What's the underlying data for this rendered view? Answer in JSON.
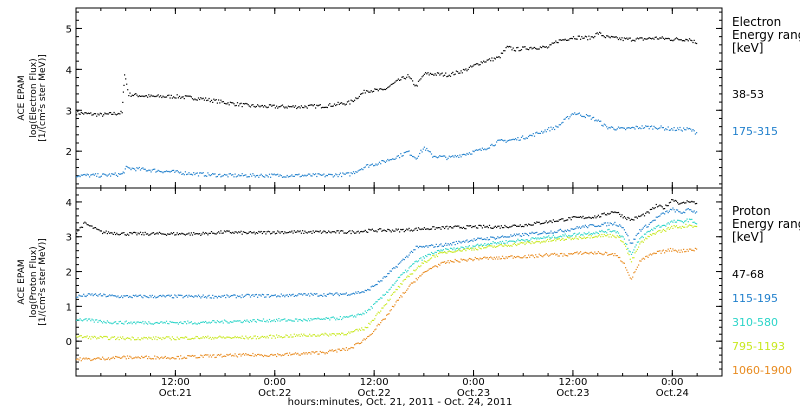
{
  "figure": {
    "x_axis_caption": "hours:minutes, Oct. 21, 2011 - Oct. 24, 2011",
    "time_ticks": [
      {
        "t": 12,
        "time": "12:00",
        "date": "Oct.21"
      },
      {
        "t": 24,
        "time": "0:00",
        "date": "Oct.22"
      },
      {
        "t": 36,
        "time": "12:00",
        "date": "Oct.22"
      },
      {
        "t": 48,
        "time": "0:00",
        "date": "Oct.23"
      },
      {
        "t": 60,
        "time": "12:00",
        "date": "Oct.23"
      },
      {
        "t": 72,
        "time": "0:00",
        "date": "Oct.24"
      }
    ]
  },
  "chart_data": [
    {
      "type": "scatter",
      "ylabel": [
        "ACE EPAM",
        "log(Electron Flux)",
        "[1/(cm²s ster MeV)]"
      ],
      "ylim": [
        1.1,
        5.5
      ],
      "xlim": [
        0,
        78
      ],
      "yticks": [
        2,
        3,
        4,
        5
      ],
      "legend_title": [
        "Electron",
        "Energy range",
        "[keV]"
      ],
      "series": [
        {
          "name": "38-53",
          "color": "#000000",
          "points": [
            [
              0,
              2.95
            ],
            [
              3,
              2.9
            ],
            [
              5.5,
              2.95
            ],
            [
              5.8,
              3.9
            ],
            [
              6.3,
              3.4
            ],
            [
              9,
              3.35
            ],
            [
              12,
              3.35
            ],
            [
              15,
              3.3
            ],
            [
              18,
              3.2
            ],
            [
              21,
              3.12
            ],
            [
              24,
              3.1
            ],
            [
              27,
              3.1
            ],
            [
              30,
              3.12
            ],
            [
              33,
              3.2
            ],
            [
              35,
              3.5
            ],
            [
              37,
              3.5
            ],
            [
              39,
              3.75
            ],
            [
              40,
              3.85
            ],
            [
              41,
              3.6
            ],
            [
              42,
              3.9
            ],
            [
              43,
              3.9
            ],
            [
              45,
              3.88
            ],
            [
              47,
              4.0
            ],
            [
              49,
              4.2
            ],
            [
              51,
              4.3
            ],
            [
              52,
              4.55
            ],
            [
              53,
              4.5
            ],
            [
              55,
              4.55
            ],
            [
              57,
              4.55
            ],
            [
              58,
              4.7
            ],
            [
              60,
              4.8
            ],
            [
              62,
              4.78
            ],
            [
              63,
              4.9
            ],
            [
              64,
              4.8
            ],
            [
              66,
              4.75
            ],
            [
              68,
              4.75
            ],
            [
              70,
              4.78
            ],
            [
              72,
              4.75
            ],
            [
              74,
              4.75
            ],
            [
              75,
              4.65
            ]
          ]
        },
        {
          "name": "175-315",
          "color": "#1f7fcc",
          "points": [
            [
              0,
              1.42
            ],
            [
              3,
              1.42
            ],
            [
              5.5,
              1.45
            ],
            [
              6,
              1.6
            ],
            [
              9,
              1.55
            ],
            [
              12,
              1.5
            ],
            [
              15,
              1.45
            ],
            [
              18,
              1.42
            ],
            [
              21,
              1.42
            ],
            [
              24,
              1.42
            ],
            [
              27,
              1.42
            ],
            [
              30,
              1.42
            ],
            [
              33,
              1.45
            ],
            [
              35,
              1.65
            ],
            [
              37,
              1.75
            ],
            [
              39,
              1.9
            ],
            [
              40,
              2.0
            ],
            [
              41,
              1.85
            ],
            [
              42,
              2.1
            ],
            [
              43,
              1.9
            ],
            [
              45,
              1.85
            ],
            [
              47,
              1.95
            ],
            [
              49,
              2.05
            ],
            [
              51,
              2.25
            ],
            [
              53,
              2.3
            ],
            [
              55,
              2.4
            ],
            [
              57,
              2.55
            ],
            [
              58,
              2.6
            ],
            [
              60,
              2.95
            ],
            [
              62,
              2.85
            ],
            [
              63,
              2.75
            ],
            [
              64,
              2.6
            ],
            [
              66,
              2.55
            ],
            [
              68,
              2.6
            ],
            [
              70,
              2.6
            ],
            [
              72,
              2.55
            ],
            [
              74,
              2.55
            ],
            [
              75,
              2.45
            ]
          ]
        }
      ]
    },
    {
      "type": "scatter",
      "ylabel": [
        "ACE EPAM",
        "log(Proton Flux)",
        "[1/(cm²s ster MeV)]"
      ],
      "ylim": [
        -1.0,
        4.4
      ],
      "xlim": [
        0,
        78
      ],
      "yticks": [
        0,
        1,
        2,
        3,
        4
      ],
      "legend_title": [
        "Proton",
        "Energy range",
        "[keV]"
      ],
      "series": [
        {
          "name": "47-68",
          "color": "#000000",
          "points": [
            [
              0,
              3.15
            ],
            [
              1,
              3.4
            ],
            [
              3,
              3.15
            ],
            [
              6,
              3.1
            ],
            [
              9,
              3.1
            ],
            [
              12,
              3.1
            ],
            [
              15,
              3.1
            ],
            [
              18,
              3.15
            ],
            [
              21,
              3.12
            ],
            [
              24,
              3.15
            ],
            [
              27,
              3.15
            ],
            [
              30,
              3.15
            ],
            [
              33,
              3.15
            ],
            [
              36,
              3.2
            ],
            [
              39,
              3.2
            ],
            [
              42,
              3.25
            ],
            [
              45,
              3.28
            ],
            [
              48,
              3.3
            ],
            [
              51,
              3.3
            ],
            [
              54,
              3.35
            ],
            [
              57,
              3.45
            ],
            [
              60,
              3.55
            ],
            [
              63,
              3.6
            ],
            [
              65,
              3.75
            ],
            [
              66,
              3.6
            ],
            [
              67,
              3.5
            ],
            [
              69,
              3.7
            ],
            [
              70,
              3.9
            ],
            [
              71,
              3.85
            ],
            [
              72,
              4.1
            ],
            [
              73,
              3.95
            ],
            [
              74,
              4.05
            ],
            [
              75,
              3.95
            ]
          ]
        },
        {
          "name": "115-195",
          "color": "#1f7fcc",
          "points": [
            [
              0,
              1.3
            ],
            [
              2,
              1.35
            ],
            [
              5,
              1.3
            ],
            [
              9,
              1.3
            ],
            [
              12,
              1.3
            ],
            [
              15,
              1.3
            ],
            [
              18,
              1.3
            ],
            [
              21,
              1.32
            ],
            [
              24,
              1.32
            ],
            [
              27,
              1.35
            ],
            [
              30,
              1.35
            ],
            [
              33,
              1.38
            ],
            [
              35,
              1.45
            ],
            [
              37,
              1.8
            ],
            [
              39,
              2.25
            ],
            [
              41,
              2.7
            ],
            [
              43,
              2.75
            ],
            [
              45,
              2.8
            ],
            [
              47,
              2.9
            ],
            [
              49,
              2.95
            ],
            [
              51,
              3.0
            ],
            [
              53,
              3.05
            ],
            [
              55,
              3.1
            ],
            [
              57,
              3.15
            ],
            [
              59,
              3.2
            ],
            [
              61,
              3.3
            ],
            [
              63,
              3.35
            ],
            [
              65,
              3.4
            ],
            [
              66,
              3.3
            ],
            [
              67,
              2.8
            ],
            [
              68,
              3.2
            ],
            [
              69,
              3.35
            ],
            [
              70,
              3.55
            ],
            [
              71,
              3.7
            ],
            [
              72,
              3.8
            ],
            [
              73,
              3.7
            ],
            [
              74,
              3.8
            ],
            [
              75,
              3.7
            ]
          ]
        },
        {
          "name": "310-580",
          "color": "#2ad4c8",
          "points": [
            [
              0,
              0.65
            ],
            [
              2,
              0.6
            ],
            [
              5,
              0.55
            ],
            [
              9,
              0.55
            ],
            [
              12,
              0.55
            ],
            [
              15,
              0.55
            ],
            [
              18,
              0.58
            ],
            [
              21,
              0.6
            ],
            [
              24,
              0.62
            ],
            [
              27,
              0.62
            ],
            [
              30,
              0.65
            ],
            [
              33,
              0.7
            ],
            [
              35,
              0.85
            ],
            [
              37,
              1.3
            ],
            [
              39,
              1.85
            ],
            [
              41,
              2.3
            ],
            [
              43,
              2.55
            ],
            [
              45,
              2.65
            ],
            [
              47,
              2.7
            ],
            [
              49,
              2.8
            ],
            [
              51,
              2.85
            ],
            [
              53,
              2.9
            ],
            [
              55,
              2.95
            ],
            [
              57,
              3.0
            ],
            [
              59,
              3.05
            ],
            [
              61,
              3.1
            ],
            [
              63,
              3.15
            ],
            [
              65,
              3.2
            ],
            [
              66,
              3.0
            ],
            [
              67,
              2.5
            ],
            [
              68,
              2.95
            ],
            [
              69,
              3.15
            ],
            [
              70,
              3.3
            ],
            [
              71,
              3.35
            ],
            [
              72,
              3.45
            ],
            [
              73,
              3.45
            ],
            [
              74,
              3.5
            ],
            [
              75,
              3.4
            ]
          ]
        },
        {
          "name": "795-1193",
          "color": "#c8e81e",
          "points": [
            [
              0,
              0.15
            ],
            [
              2,
              0.12
            ],
            [
              5,
              0.1
            ],
            [
              9,
              0.1
            ],
            [
              12,
              0.1
            ],
            [
              15,
              0.12
            ],
            [
              18,
              0.12
            ],
            [
              21,
              0.12
            ],
            [
              24,
              0.15
            ],
            [
              27,
              0.18
            ],
            [
              30,
              0.2
            ],
            [
              33,
              0.25
            ],
            [
              35,
              0.4
            ],
            [
              37,
              1.0
            ],
            [
              39,
              1.6
            ],
            [
              41,
              2.1
            ],
            [
              43,
              2.45
            ],
            [
              45,
              2.6
            ],
            [
              47,
              2.65
            ],
            [
              49,
              2.7
            ],
            [
              51,
              2.75
            ],
            [
              53,
              2.8
            ],
            [
              55,
              2.85
            ],
            [
              57,
              2.9
            ],
            [
              59,
              2.95
            ],
            [
              61,
              3.0
            ],
            [
              63,
              3.05
            ],
            [
              65,
              3.05
            ],
            [
              66,
              2.9
            ],
            [
              67,
              2.3
            ],
            [
              68,
              2.8
            ],
            [
              69,
              3.0
            ],
            [
              70,
              3.15
            ],
            [
              71,
              3.2
            ],
            [
              72,
              3.3
            ],
            [
              73,
              3.3
            ],
            [
              74,
              3.35
            ],
            [
              75,
              3.3
            ]
          ]
        },
        {
          "name": "1060-1900",
          "color": "#e88a1e",
          "points": [
            [
              0,
              -0.5
            ],
            [
              2,
              -0.5
            ],
            [
              5,
              -0.45
            ],
            [
              9,
              -0.45
            ],
            [
              12,
              -0.45
            ],
            [
              15,
              -0.42
            ],
            [
              18,
              -0.4
            ],
            [
              21,
              -0.38
            ],
            [
              24,
              -0.38
            ],
            [
              27,
              -0.35
            ],
            [
              30,
              -0.3
            ],
            [
              33,
              -0.2
            ],
            [
              35,
              0.1
            ],
            [
              37,
              0.6
            ],
            [
              39,
              1.25
            ],
            [
              41,
              1.8
            ],
            [
              43,
              2.15
            ],
            [
              45,
              2.3
            ],
            [
              47,
              2.35
            ],
            [
              49,
              2.4
            ],
            [
              51,
              2.4
            ],
            [
              53,
              2.45
            ],
            [
              55,
              2.45
            ],
            [
              57,
              2.5
            ],
            [
              59,
              2.5
            ],
            [
              61,
              2.55
            ],
            [
              63,
              2.55
            ],
            [
              65,
              2.5
            ],
            [
              66,
              2.3
            ],
            [
              67,
              1.8
            ],
            [
              68,
              2.3
            ],
            [
              69,
              2.45
            ],
            [
              70,
              2.55
            ],
            [
              71,
              2.6
            ],
            [
              72,
              2.65
            ],
            [
              73,
              2.6
            ],
            [
              74,
              2.65
            ],
            [
              75,
              2.65
            ]
          ]
        }
      ]
    }
  ]
}
